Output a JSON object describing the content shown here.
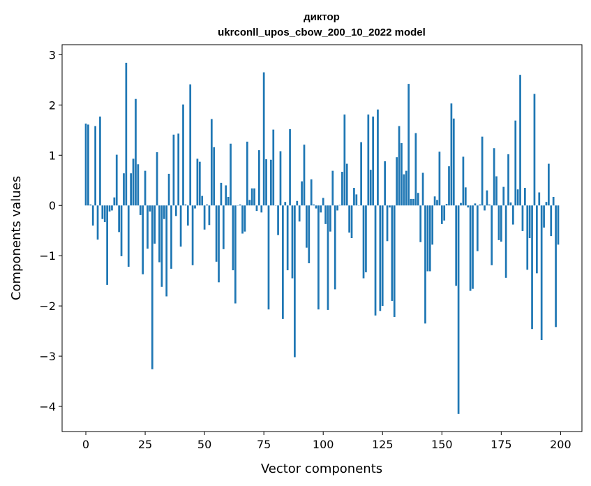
{
  "chart_data": {
    "type": "bar",
    "title_line1": "диктор",
    "title_line2": "ukrconll_upos_cbow_200_10_2022 model",
    "xlabel": "Vector components",
    "ylabel": "Components values",
    "xlim": [
      -10,
      209
    ],
    "ylim": [
      -4.5,
      3.2
    ],
    "xticks": [
      0,
      25,
      50,
      75,
      100,
      125,
      150,
      175,
      200
    ],
    "yticks": [
      -4,
      -3,
      -2,
      -1,
      0,
      1,
      2,
      3
    ],
    "ytick_labels": [
      "−4",
      "−3",
      "−2",
      "−1",
      "0",
      "1",
      "2",
      "3"
    ],
    "bar_color": "#1f77b4",
    "values": [
      1.63,
      1.61,
      0.02,
      -0.4,
      1.58,
      -0.68,
      1.77,
      -0.27,
      -0.33,
      -1.58,
      -0.12,
      -0.1,
      0.16,
      1.01,
      -0.53,
      -1.01,
      0.64,
      2.84,
      -1.22,
      0.64,
      0.93,
      2.12,
      0.82,
      -0.19,
      -1.37,
      0.69,
      -0.86,
      -0.12,
      -3.26,
      -0.76,
      1.06,
      -1.13,
      -1.62,
      -0.27,
      -1.81,
      0.63,
      -1.26,
      1.41,
      -0.21,
      1.43,
      -0.82,
      2.01,
      0.02,
      -0.4,
      2.41,
      -1.19,
      -0.06,
      0.93,
      0.87,
      0.19,
      -0.48,
      0.02,
      -0.39,
      1.72,
      1.16,
      -1.12,
      -1.53,
      0.45,
      -0.87,
      0.4,
      0.17,
      1.23,
      -1.29,
      -1.95,
      0.0,
      0.02,
      -0.56,
      -0.52,
      1.27,
      0.11,
      0.34,
      0.34,
      -0.11,
      1.1,
      -0.14,
      2.65,
      0.92,
      -2.07,
      0.91,
      1.51,
      0.0,
      -0.59,
      1.08,
      -2.26,
      0.07,
      -1.29,
      1.52,
      -1.45,
      -3.02,
      0.09,
      -0.32,
      0.48,
      1.21,
      -0.84,
      -1.15,
      0.52,
      0.02,
      -0.06,
      -2.07,
      -0.14,
      0.15,
      -0.37,
      -2.08,
      -0.52,
      0.69,
      -1.67,
      -0.1,
      0.01,
      0.67,
      1.81,
      0.83,
      -0.54,
      -0.65,
      0.35,
      0.22,
      0.0,
      1.26,
      -1.45,
      -1.33,
      1.81,
      0.71,
      1.77,
      -2.19,
      1.91,
      -2.1,
      -2.0,
      0.88,
      -0.71,
      -0.04,
      -1.9,
      -2.22,
      0.96,
      1.58,
      1.24,
      0.62,
      0.69,
      2.42,
      0.13,
      0.13,
      1.44,
      0.25,
      -0.73,
      0.65,
      -2.35,
      -1.31,
      -1.31,
      -0.78,
      0.18,
      0.11,
      1.07,
      -0.37,
      -0.3,
      0.03,
      0.78,
      2.03,
      1.73,
      -1.6,
      -4.15,
      0.05,
      0.97,
      0.36,
      -0.04,
      -1.7,
      -1.66,
      0.04,
      -0.91,
      0.02,
      1.37,
      -0.1,
      0.3,
      0.02,
      -1.19,
      1.14,
      0.58,
      -0.69,
      -0.72,
      0.37,
      -1.44,
      1.02,
      0.06,
      -0.38,
      1.69,
      0.32,
      2.6,
      -0.51,
      0.35,
      -1.28,
      -0.65,
      -2.46,
      2.22,
      -1.35,
      0.26,
      -2.68,
      -0.44,
      0.07,
      0.83,
      -0.61,
      0.17,
      -2.42,
      -0.78
    ]
  }
}
